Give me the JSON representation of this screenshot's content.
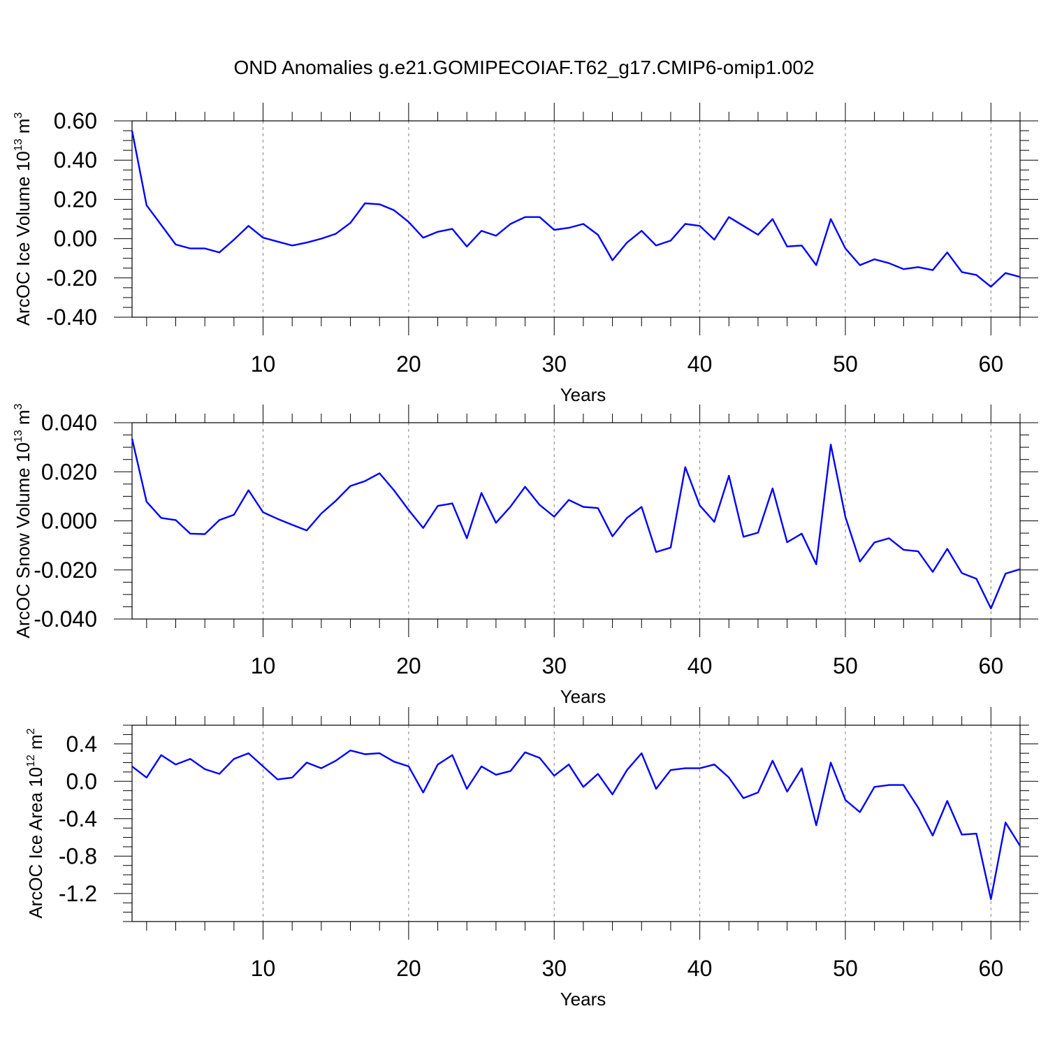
{
  "title": "OND Anomalies g.e21.GOMIPECOIAF.T62_g17.CMIP6-omip1.002",
  "colors": {
    "series": "#0000ff",
    "axis": "#000000",
    "grid": "#808080"
  },
  "chart_data": [
    {
      "type": "line",
      "ylabel": "ArcOC Ice Volume 10",
      "ylabel_exp": "13",
      "ylabel_unit": " m",
      "ylabel_unit_exp": "3",
      "xlabel": "Years",
      "xlim": [
        1,
        62
      ],
      "ylim": [
        -0.4,
        0.6
      ],
      "xticks": [
        10,
        20,
        30,
        40,
        50,
        60
      ],
      "xtick_labels": [
        "10",
        "20",
        "30",
        "40",
        "50",
        "60"
      ],
      "yticks": [
        -0.4,
        -0.2,
        0.0,
        0.2,
        0.4,
        0.6
      ],
      "ytick_labels": [
        "-0.40",
        "-0.20",
        "0.00",
        "0.20",
        "0.40",
        "0.60"
      ],
      "x": [
        1,
        2,
        3,
        4,
        5,
        6,
        7,
        8,
        9,
        10,
        11,
        12,
        13,
        14,
        15,
        16,
        17,
        18,
        19,
        20,
        21,
        22,
        23,
        24,
        25,
        26,
        27,
        28,
        29,
        30,
        31,
        32,
        33,
        34,
        35,
        36,
        37,
        38,
        39,
        40,
        41,
        42,
        43,
        44,
        45,
        46,
        47,
        48,
        49,
        50,
        51,
        52,
        53,
        54,
        55,
        56,
        57,
        58,
        59,
        60,
        61,
        62
      ],
      "values": [
        0.55,
        0.17,
        0.07,
        -0.03,
        -0.05,
        -0.05,
        -0.07,
        -0.005,
        0.065,
        0.005,
        -0.015,
        -0.035,
        -0.02,
        0.0,
        0.025,
        0.08,
        0.18,
        0.175,
        0.145,
        0.085,
        0.005,
        0.035,
        0.05,
        -0.04,
        0.04,
        0.015,
        0.075,
        0.11,
        0.11,
        0.045,
        0.055,
        0.075,
        0.02,
        -0.11,
        -0.02,
        0.04,
        -0.035,
        -0.01,
        0.075,
        0.065,
        -0.005,
        0.11,
        0.065,
        0.02,
        0.1,
        -0.04,
        -0.035,
        -0.135,
        0.1,
        -0.05,
        -0.135,
        -0.105,
        -0.125,
        -0.155,
        -0.145,
        -0.16,
        -0.07,
        -0.17,
        -0.185,
        -0.245,
        -0.175,
        -0.195
      ]
    },
    {
      "type": "line",
      "ylabel": "ArcOC Snow Volume 10",
      "ylabel_exp": "13",
      "ylabel_unit": " m",
      "ylabel_unit_exp": "3",
      "xlabel": "Years",
      "xlim": [
        1,
        62
      ],
      "ylim": [
        -0.04,
        0.04
      ],
      "xticks": [
        10,
        20,
        30,
        40,
        50,
        60
      ],
      "xtick_labels": [
        "10",
        "20",
        "30",
        "40",
        "50",
        "60"
      ],
      "yticks": [
        -0.04,
        -0.02,
        0.0,
        0.02,
        0.04
      ],
      "ytick_labels": [
        "-0.040",
        "-0.020",
        "0.000",
        "0.020",
        "0.040"
      ],
      "x": [
        1,
        2,
        3,
        4,
        5,
        6,
        7,
        8,
        9,
        10,
        11,
        12,
        13,
        14,
        15,
        16,
        17,
        18,
        19,
        20,
        21,
        22,
        23,
        24,
        25,
        26,
        27,
        28,
        29,
        30,
        31,
        32,
        33,
        34,
        35,
        36,
        37,
        38,
        39,
        40,
        41,
        42,
        43,
        44,
        45,
        46,
        47,
        48,
        49,
        50,
        51,
        52,
        53,
        54,
        55,
        56,
        57,
        58,
        59,
        60,
        61,
        62
      ],
      "values": [
        0.0335,
        0.0078,
        0.0012,
        0.0003,
        -0.0052,
        -0.0054,
        0.0003,
        0.0025,
        0.0125,
        0.0035,
        0.0008,
        -0.0016,
        -0.0039,
        0.003,
        0.0082,
        0.0142,
        0.0162,
        0.0194,
        0.0124,
        0.0044,
        -0.0029,
        0.0061,
        0.0071,
        -0.0071,
        0.0114,
        -0.0008,
        0.0058,
        0.0139,
        0.0065,
        0.0017,
        0.0085,
        0.0057,
        0.0052,
        -0.0063,
        0.0012,
        0.0057,
        -0.0127,
        -0.0109,
        0.0219,
        0.0063,
        -0.0004,
        0.0184,
        -0.0065,
        -0.0048,
        0.0132,
        -0.0087,
        -0.0052,
        -0.0177,
        0.0311,
        0.0016,
        -0.0166,
        -0.0088,
        -0.0071,
        -0.0118,
        -0.0124,
        -0.0208,
        -0.0114,
        -0.0213,
        -0.0236,
        -0.0357,
        -0.0215,
        -0.0197
      ]
    },
    {
      "type": "line",
      "ylabel": "ArcOC Ice Area 10",
      "ylabel_exp": "12",
      "ylabel_unit": " m",
      "ylabel_unit_exp": "2",
      "xlabel": "Years",
      "xlim": [
        1,
        62
      ],
      "ylim": [
        -1.5,
        0.6
      ],
      "xticks": [
        10,
        20,
        30,
        40,
        50,
        60
      ],
      "xtick_labels": [
        "10",
        "20",
        "30",
        "40",
        "50",
        "60"
      ],
      "yticks": [
        -1.2,
        -0.8,
        -0.4,
        0.0,
        0.4
      ],
      "ytick_labels": [
        "-1.2",
        "-0.8",
        "-0.4",
        "0.0",
        "0.4"
      ],
      "x": [
        1,
        2,
        3,
        4,
        5,
        6,
        7,
        8,
        9,
        10,
        11,
        12,
        13,
        14,
        15,
        16,
        17,
        18,
        19,
        20,
        21,
        22,
        23,
        24,
        25,
        26,
        27,
        28,
        29,
        30,
        31,
        32,
        33,
        34,
        35,
        36,
        37,
        38,
        39,
        40,
        41,
        42,
        43,
        44,
        45,
        46,
        47,
        48,
        49,
        50,
        51,
        52,
        53,
        54,
        55,
        56,
        57,
        58,
        59,
        60,
        61,
        62
      ],
      "values": [
        0.16,
        0.04,
        0.28,
        0.18,
        0.24,
        0.13,
        0.08,
        0.24,
        0.3,
        0.16,
        0.02,
        0.04,
        0.2,
        0.14,
        0.22,
        0.33,
        0.29,
        0.3,
        0.21,
        0.16,
        -0.12,
        0.18,
        0.28,
        -0.08,
        0.16,
        0.07,
        0.11,
        0.31,
        0.25,
        0.06,
        0.18,
        -0.06,
        0.08,
        -0.14,
        0.12,
        0.3,
        -0.08,
        0.12,
        0.14,
        0.14,
        0.18,
        0.04,
        -0.18,
        -0.12,
        0.22,
        -0.11,
        0.14,
        -0.47,
        0.2,
        -0.2,
        -0.33,
        -0.06,
        -0.04,
        -0.04,
        -0.28,
        -0.58,
        -0.21,
        -0.57,
        -0.56,
        -1.26,
        -0.44,
        -0.69
      ]
    }
  ]
}
